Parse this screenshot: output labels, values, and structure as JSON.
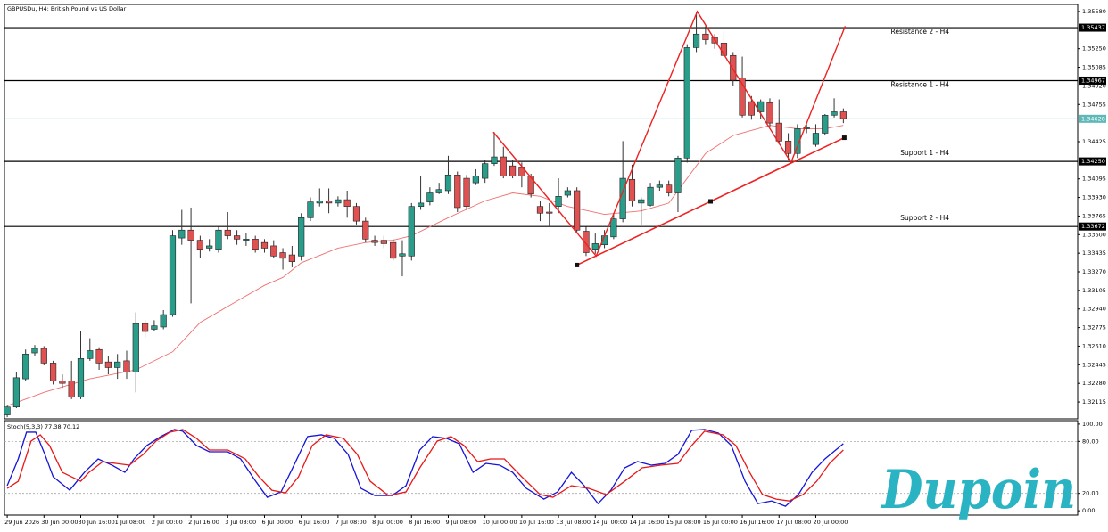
{
  "chart_data": [
    {
      "type": "candlestick",
      "title": "GBPUSDu, H4: British Pound vs US Dollar",
      "categories": [
        "29 Jun 2026",
        null,
        null,
        null,
        "30 Jun 00:00",
        null,
        null,
        null,
        "30 Jun 16:00",
        null,
        null,
        null,
        "1 Jul 08:00",
        null,
        null,
        null,
        "2 Jul 00:00",
        null,
        null,
        null,
        "2 Jul 16:00",
        null,
        null,
        null,
        "3 Jul 08:00",
        null,
        null,
        null,
        "6 Jul 00:00",
        null,
        null,
        null,
        "6 Jul 16:00",
        null,
        null,
        null,
        "7 Jul 08:00",
        null,
        null,
        null,
        "8 Jul 00:00",
        null,
        null,
        null,
        "8 Jul 16:00",
        null,
        null,
        null,
        "9 Jul 08:00",
        null,
        null,
        null,
        "10 Jul 00:00",
        null,
        null,
        null,
        "10 Jul 16:00",
        null,
        null,
        null,
        "13 Jul 08:00",
        null,
        null,
        null,
        "14 Jul 00:00",
        null,
        null,
        null,
        "14 Jul 16:00",
        null,
        null,
        null,
        "15 Jul 08:00",
        null,
        null,
        null,
        "16 Jul 00:00",
        null,
        null,
        null,
        "16 Jul 16:00",
        null,
        null,
        null,
        "17 Jul 08:00",
        null,
        null,
        null,
        "20 Jul 00:00",
        null,
        null,
        null
      ],
      "open": [
        1.32,
        1.3207,
        1.3232,
        1.3255,
        1.3259,
        1.3246,
        1.323,
        1.323,
        1.3216,
        1.325,
        1.3258,
        1.3247,
        1.3242,
        1.3248,
        1.3238,
        1.3281,
        1.3276,
        1.3278,
        1.3289,
        1.3357,
        1.3364,
        1.3355,
        1.3348,
        1.3347,
        1.3364,
        1.3359,
        1.3355,
        1.3356,
        1.3353,
        1.335,
        1.3344,
        1.3342,
        1.3341,
        1.3375,
        1.3388,
        1.339,
        1.3388,
        1.3391,
        1.3385,
        1.3372,
        1.3355,
        1.3355,
        1.3353,
        1.3341,
        1.3341,
        1.3385,
        1.3389,
        1.3397,
        1.3399,
        1.3413,
        1.341,
        1.3406,
        1.341,
        1.3423,
        1.3429,
        1.3421,
        1.342,
        1.3412,
        1.3385,
        1.338,
        1.3385,
        1.3395,
        1.3399,
        1.3363,
        1.3347,
        1.3351,
        1.3358,
        1.3374,
        1.3409,
        1.3388,
        1.3386,
        1.3402,
        1.3404,
        1.3397,
        1.3428,
        1.3526,
        1.3538,
        1.3535,
        1.353,
        1.3519,
        1.3499,
        1.3478,
        1.3469,
        1.3477,
        1.3459,
        1.3443,
        1.3432,
        1.3454,
        1.344,
        1.345,
        1.3466,
        1.3469
      ],
      "high": [
        1.3208,
        1.3238,
        1.3258,
        1.3262,
        1.3261,
        1.3248,
        1.3236,
        1.3248,
        1.3274,
        1.3268,
        1.326,
        1.3252,
        1.3254,
        1.3257,
        1.3291,
        1.3284,
        1.3284,
        1.3293,
        1.3364,
        1.3382,
        1.3384,
        1.3359,
        1.3356,
        1.3367,
        1.338,
        1.3364,
        1.3361,
        1.3359,
        1.3356,
        1.3355,
        1.3348,
        1.335,
        1.3379,
        1.3393,
        1.3401,
        1.3401,
        1.3394,
        1.3399,
        1.3388,
        1.3375,
        1.3359,
        1.3359,
        1.3356,
        1.3355,
        1.3388,
        1.3412,
        1.3402,
        1.3406,
        1.343,
        1.3416,
        1.3413,
        1.3418,
        1.3426,
        1.3451,
        1.3438,
        1.3426,
        1.3424,
        1.3414,
        1.339,
        1.3388,
        1.341,
        1.3402,
        1.3402,
        1.3367,
        1.3361,
        1.3364,
        1.3379,
        1.3443,
        1.3422,
        1.3393,
        1.3406,
        1.3408,
        1.3408,
        1.343,
        1.3529,
        1.3557,
        1.3545,
        1.3538,
        1.3541,
        1.3522,
        1.3518,
        1.3483,
        1.348,
        1.3481,
        1.348,
        1.345,
        1.3458,
        1.3458,
        1.3458,
        1.3467,
        1.3481,
        1.3472
      ],
      "low": [
        1.3198,
        1.3206,
        1.323,
        1.3252,
        1.3244,
        1.3227,
        1.3224,
        1.3214,
        1.3214,
        1.3248,
        1.324,
        1.3236,
        1.3232,
        1.3232,
        1.322,
        1.3269,
        1.3274,
        1.3276,
        1.3287,
        1.3351,
        1.3299,
        1.3339,
        1.3345,
        1.3344,
        1.3356,
        1.3351,
        1.335,
        1.3344,
        1.3344,
        1.3339,
        1.3329,
        1.3331,
        1.3337,
        1.3372,
        1.3385,
        1.3379,
        1.3385,
        1.3375,
        1.3369,
        1.3353,
        1.335,
        1.3348,
        1.3337,
        1.3323,
        1.3337,
        1.3382,
        1.3386,
        1.3396,
        1.3396,
        1.338,
        1.3382,
        1.3404,
        1.3406,
        1.3421,
        1.341,
        1.341,
        1.3402,
        1.3393,
        1.3372,
        1.3367,
        1.3379,
        1.3393,
        1.3361,
        1.3341,
        1.3343,
        1.3348,
        1.3356,
        1.3371,
        1.3385,
        1.3369,
        1.3385,
        1.3399,
        1.3394,
        1.338,
        1.3424,
        1.3522,
        1.3529,
        1.3525,
        1.3518,
        1.3492,
        1.3464,
        1.3462,
        1.3463,
        1.3456,
        1.344,
        1.3426,
        1.3428,
        1.345,
        1.3438,
        1.3448,
        1.3464,
        1.3459
      ],
      "close": [
        1.3207,
        1.3233,
        1.3254,
        1.3259,
        1.3246,
        1.323,
        1.3228,
        1.3216,
        1.325,
        1.3257,
        1.3246,
        1.3242,
        1.3247,
        1.3238,
        1.3281,
        1.3274,
        1.3279,
        1.3289,
        1.3359,
        1.3364,
        1.3355,
        1.3347,
        1.335,
        1.3364,
        1.3359,
        1.3356,
        1.3356,
        1.3347,
        1.3348,
        1.3341,
        1.3339,
        1.3336,
        1.3375,
        1.3389,
        1.339,
        1.3388,
        1.3391,
        1.3385,
        1.3372,
        1.3356,
        1.3353,
        1.3352,
        1.3339,
        1.3343,
        1.3385,
        1.3388,
        1.3397,
        1.34,
        1.3413,
        1.3384,
        1.3385,
        1.3412,
        1.3423,
        1.3429,
        1.3412,
        1.3412,
        1.3412,
        1.3396,
        1.3379,
        1.3379,
        1.3394,
        1.3399,
        1.3364,
        1.3344,
        1.3352,
        1.3359,
        1.3374,
        1.341,
        1.339,
        1.3391,
        1.3402,
        1.3404,
        1.3397,
        1.3428,
        1.3526,
        1.3538,
        1.3533,
        1.353,
        1.3519,
        1.3497,
        1.3466,
        1.3466,
        1.3478,
        1.3459,
        1.3443,
        1.3432,
        1.3454,
        1.3455,
        1.345,
        1.3466,
        1.3469,
        1.3463
      ],
      "up_color": "#2a9d8a",
      "down_color": "#e05252",
      "xlim": [
        -0.3,
        116.5
      ],
      "ylim": [
        1.31965,
        1.35643
      ],
      "yticks": [
        {
          "value": 1.3558,
          "label": "1.35580"
        },
        {
          "value": 1.3525,
          "label": "1.35250"
        },
        {
          "value": 1.35085,
          "label": "1.35085"
        },
        {
          "value": 1.3492,
          "label": "1.34920"
        },
        {
          "value": 1.34755,
          "label": "1.34755"
        },
        {
          "value": 1.34425,
          "label": "1.34425"
        },
        {
          "value": 1.34095,
          "label": "1.34095"
        },
        {
          "value": 1.3393,
          "label": "1.33930"
        },
        {
          "value": 1.33765,
          "label": "1.33765"
        },
        {
          "value": 1.336,
          "label": "1.33600"
        },
        {
          "value": 1.33435,
          "label": "1.33435"
        },
        {
          "value": 1.3327,
          "label": "1.33270"
        },
        {
          "value": 1.33105,
          "label": "1.33105"
        },
        {
          "value": 1.3294,
          "label": "1.32940"
        },
        {
          "value": 1.32775,
          "label": "1.32775"
        },
        {
          "value": 1.3261,
          "label": "1.32610"
        },
        {
          "value": 1.32445,
          "label": "1.32445"
        },
        {
          "value": 1.3228,
          "label": "1.32280"
        },
        {
          "value": 1.32115,
          "label": "1.32115"
        }
      ],
      "ma": {
        "color": "#f07070",
        "x": [
          0,
          4,
          9,
          14,
          18,
          21,
          25,
          28,
          30,
          32,
          36,
          39,
          42,
          44,
          48,
          52,
          55,
          58,
          61,
          65,
          69,
          72,
          74,
          76,
          79,
          83,
          86,
          89,
          91
        ],
        "values": [
          1.3208,
          1.322,
          1.3232,
          1.324,
          1.3256,
          1.3282,
          1.3301,
          1.3315,
          1.3322,
          1.3335,
          1.3348,
          1.3353,
          1.3355,
          1.3359,
          1.3375,
          1.339,
          1.3397,
          1.3394,
          1.3385,
          1.3378,
          1.3381,
          1.3388,
          1.341,
          1.3432,
          1.3448,
          1.3457,
          1.3454,
          1.3454,
          1.3457
        ]
      },
      "levels": [
        {
          "name": "Resistance 2 - H4",
          "value": 1.35437
        },
        {
          "name": "Resistance 1 - H4",
          "value": 1.34967
        },
        {
          "name": "Support 1 - H4",
          "value": 1.3425,
          "label": "1.34250"
        },
        {
          "name": "Support 2 - H4",
          "value": 1.33672
        }
      ],
      "current_price": {
        "value": 1.34628,
        "color": "#5fb8b8"
      },
      "zigzag": {
        "color": "#ee2222",
        "x": [
          52.9,
          64.1,
          75.1,
          85.3,
          91.2
        ],
        "values": [
          1.3451,
          1.3341,
          1.3558,
          1.3424,
          1.3545
        ]
      },
      "trendline": {
        "color": "#ee2222",
        "x": [
          62.0,
          91.1
        ],
        "values": [
          1.3333,
          1.3446
        ]
      }
    },
    {
      "type": "line",
      "title": "Stoch(5,3,3) 77.38 70.12",
      "xlim": [
        -0.3,
        116.5
      ],
      "ylim": [
        -5,
        104
      ],
      "yticks": [
        {
          "value": 100,
          "label": "100.00"
        },
        {
          "value": 80,
          "label": "80.00"
        },
        {
          "value": 20,
          "label": "20.00"
        },
        {
          "value": 0,
          "label": "0.00"
        }
      ],
      "dashed_levels": [
        80,
        20
      ],
      "series": [
        {
          "color": "#1414d8",
          "x": [
            0,
            1.2,
            2.1,
            3.1,
            4.1,
            5.0,
            6.8,
            8.4,
            9.9,
            11.4,
            12.8,
            13.8,
            15.2,
            16.7,
            18.2,
            19.1,
            20.6,
            22.0,
            24.0,
            25.4,
            26.9,
            28.3,
            29.8,
            31.3,
            32.7,
            34.2,
            35.6,
            37.1,
            38.5,
            40.0,
            41.9,
            43.4,
            44.9,
            46.3,
            47.8,
            49.2,
            50.7,
            52.1,
            53.6,
            55.0,
            56.5,
            58.4,
            59.9,
            61.4,
            62.8,
            64.3,
            65.7,
            67.2,
            68.6,
            70.1,
            71.6,
            73.0,
            74.5,
            75.9,
            77.4,
            78.8,
            80.3,
            81.7,
            83.2,
            84.7,
            86.1,
            87.6,
            89.0,
            91
          ],
          "values": [
            28.9,
            59.8,
            90.7,
            90.7,
            65,
            39.2,
            23.7,
            44.3,
            59.8,
            52.6,
            44.3,
            59.8,
            75.3,
            85.6,
            93.8,
            91.8,
            75.3,
            68,
            68,
            59.8,
            36.1,
            15.5,
            21.7,
            54.6,
            85.6,
            87.6,
            83.5,
            65,
            25.8,
            17.5,
            17.5,
            28.9,
            70.1,
            85.6,
            83.5,
            77.3,
            44.3,
            54.6,
            52.6,
            44.3,
            25.8,
            13.4,
            21.7,
            44.3,
            28.9,
            8.2,
            23.7,
            49.5,
            56.7,
            52.6,
            54.6,
            65,
            92.8,
            93.8,
            89.7,
            75.3,
            34,
            8.2,
            11.3,
            5.2,
            18.6,
            44.3,
            59.8,
            77.38
          ]
        },
        {
          "color": "#e81818",
          "x": [
            0,
            1.2,
            2.6,
            3.6,
            4.6,
            6.0,
            8.0,
            8.9,
            10.4,
            11.8,
            13.3,
            14.8,
            16.2,
            17.7,
            19.1,
            20.6,
            22.0,
            24.0,
            25.9,
            27.4,
            28.8,
            30.3,
            31.7,
            33.2,
            34.7,
            36.6,
            38.1,
            39.5,
            41.5,
            43.4,
            44.9,
            46.8,
            48.3,
            49.7,
            51.2,
            52.6,
            54.1,
            56.0,
            58.0,
            59.4,
            61.4,
            63.3,
            65.2,
            67.2,
            69.1,
            71.1,
            73.0,
            74.5,
            75.9,
            77.9,
            79.3,
            80.8,
            82.2,
            83.7,
            85.1,
            86.6,
            88.1,
            89.5,
            91
          ],
          "values": [
            25.8,
            34,
            80.4,
            87.6,
            75.3,
            44.3,
            34,
            44.3,
            56.7,
            54.6,
            52.6,
            65,
            80.4,
            90.7,
            93.8,
            83.5,
            70.1,
            70.1,
            59.8,
            39.2,
            23.7,
            20.6,
            39.2,
            75.3,
            87.6,
            83.5,
            65,
            34,
            17.5,
            21.7,
            49.5,
            80.4,
            85.6,
            75.3,
            56.7,
            59.8,
            59.8,
            39.2,
            18.6,
            15.5,
            28.9,
            25.8,
            18.6,
            34,
            49.5,
            52.6,
            54.6,
            75.3,
            91.8,
            87.6,
            75.3,
            44.3,
            18.6,
            13.4,
            11.3,
            18.6,
            34,
            54.6,
            70.12
          ]
        }
      ]
    }
  ],
  "logo": "Dupoin"
}
